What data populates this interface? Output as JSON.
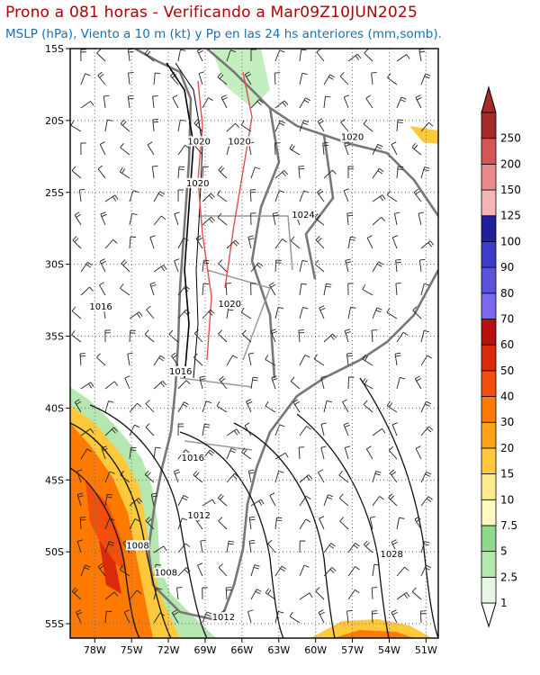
{
  "header": {
    "title": "Prono a 081 horas - Verificando a Mar09Z10JUN2025",
    "subtitle": "MSLP (hPa), Viento a 10 m (kt) y Pp en las 24 hs anteriores (mm,somb)."
  },
  "map": {
    "lon_range": [
      -80,
      -50
    ],
    "lat_range": [
      -15,
      -56
    ],
    "lat_labels": [
      "15S",
      "20S",
      "25S",
      "30S",
      "35S",
      "40S",
      "45S",
      "50S",
      "55S"
    ],
    "lat_values": [
      -15,
      -20,
      -25,
      -30,
      -35,
      -40,
      -45,
      -50,
      -55
    ],
    "lon_labels": [
      "78W",
      "75W",
      "72W",
      "69W",
      "66W",
      "63W",
      "60W",
      "57W",
      "54W",
      "51W"
    ],
    "lon_values": [
      -78,
      -75,
      -72,
      -69,
      -66,
      -63,
      -60,
      -57,
      -54,
      -51
    ],
    "isobar_labels": [
      {
        "text": "1020",
        "lon": -69.5,
        "lat": -21.6
      },
      {
        "text": "1020",
        "lon": -66.2,
        "lat": -21.6
      },
      {
        "text": "1020",
        "lon": -57.0,
        "lat": -21.3
      },
      {
        "text": "1020",
        "lon": -69.6,
        "lat": -24.5
      },
      {
        "text": "1024",
        "lon": -61.0,
        "lat": -26.7
      },
      {
        "text": "1020",
        "lon": -67.0,
        "lat": -32.9
      },
      {
        "text": "1016",
        "lon": -77.5,
        "lat": -33.1
      },
      {
        "text": "1016",
        "lon": -71.0,
        "lat": -37.6
      },
      {
        "text": "1016",
        "lon": -70.0,
        "lat": -43.6
      },
      {
        "text": "1012",
        "lon": -69.5,
        "lat": -47.6
      },
      {
        "text": "1008",
        "lon": -74.5,
        "lat": -49.7
      },
      {
        "text": "1008",
        "lon": -72.2,
        "lat": -51.6
      },
      {
        "text": "1028",
        "lon": -53.8,
        "lat": -50.3
      },
      {
        "text": "1012",
        "lon": -67.5,
        "lat": -54.7
      }
    ]
  },
  "colorbar": {
    "levels": [
      "1",
      "2.5",
      "5",
      "7.5",
      "10",
      "15",
      "20",
      "30",
      "40",
      "50",
      "60",
      "70",
      "80",
      "90",
      "100",
      "125",
      "150",
      "200",
      "250"
    ],
    "colors": [
      "#e6f7e6",
      "#b5e8b0",
      "#8fd98a",
      "#fff9c4",
      "#ffec8c",
      "#ffc93c",
      "#ffa319",
      "#ff7a00",
      "#f24e0d",
      "#d92a0a",
      "#b80f0f",
      "#7b68ee",
      "#5a52d9",
      "#3b3bcc",
      "#20209e",
      "#f4b6b6",
      "#ea8a8a",
      "#d65454",
      "#a52a2a"
    ]
  }
}
